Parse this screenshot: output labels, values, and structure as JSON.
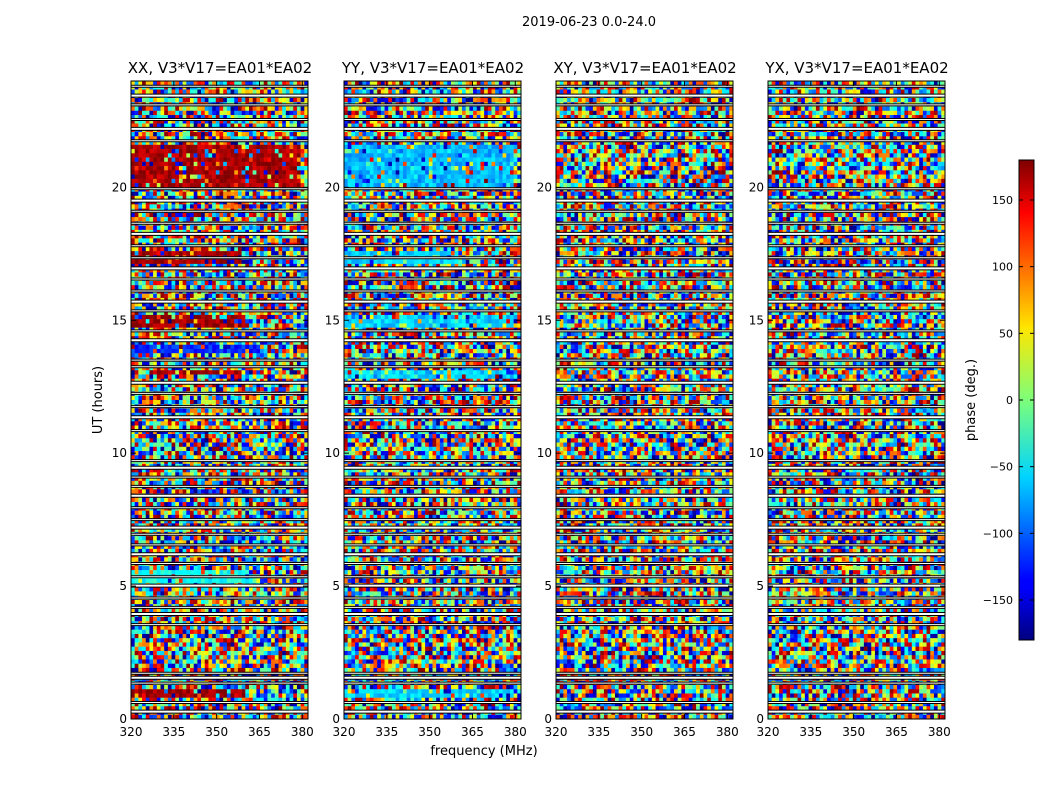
{
  "chart_data": {
    "type": "heatmap",
    "suptitle": "2019-06-23 0.0-24.0",
    "xlabel": "frequency (MHz)",
    "ylabel": "UT (hours)",
    "xlim": [
      320,
      382
    ],
    "ylim": [
      0,
      24
    ],
    "xticks": [
      320,
      335,
      350,
      365,
      380
    ],
    "yticks": [
      0,
      5,
      10,
      15,
      20
    ],
    "colorscale": "jet",
    "colorbar": {
      "label": "phase (deg.)",
      "range": [
        -180,
        180
      ],
      "ticks": [
        150,
        100,
        50,
        0,
        -50,
        -100,
        -150
      ]
    },
    "panels": [
      {
        "title": "XX, V3*V17=EA01*EA02"
      },
      {
        "title": "YY, V3*V17=EA01*EA02"
      },
      {
        "title": "XY, V3*V17=EA01*EA02"
      },
      {
        "title": "YX, V3*V17=EA01*EA02"
      }
    ],
    "features": [
      {
        "panels": [
          0
        ],
        "ut": [
          20.0,
          21.6
        ],
        "freq": [
          320,
          380
        ],
        "phase_deg": 165,
        "label": "coherent phase band"
      },
      {
        "panels": [
          0
        ],
        "ut": [
          17.2,
          17.6
        ],
        "freq": [
          320,
          360
        ],
        "phase_deg": 165
      },
      {
        "panels": [
          0
        ],
        "ut": [
          14.7,
          15.2
        ],
        "freq": [
          320,
          360
        ],
        "phase_deg": 170
      },
      {
        "panels": [
          0
        ],
        "ut": [
          13.7,
          14.1
        ],
        "freq": [
          320,
          365
        ],
        "phase_deg": -120
      },
      {
        "panels": [
          0
        ],
        "ut": [
          12.95,
          13.1
        ],
        "freq": [
          320,
          360
        ],
        "phase_deg": 165
      },
      {
        "panels": [
          0
        ],
        "ut": [
          5.0,
          5.6
        ],
        "freq": [
          320,
          362
        ],
        "phase_deg": -40
      },
      {
        "panels": [
          0
        ],
        "ut": [
          0.85,
          1.05
        ],
        "freq": [
          320,
          360
        ],
        "phase_deg": 170
      },
      {
        "panels": [
          1
        ],
        "ut": [
          20.0,
          21.6
        ],
        "freq": [
          320,
          380
        ],
        "phase_deg": -70
      },
      {
        "panels": [
          1
        ],
        "ut": [
          17.2,
          17.6
        ],
        "freq": [
          320,
          360
        ],
        "phase_deg": -60
      },
      {
        "panels": [
          1
        ],
        "ut": [
          14.7,
          15.2
        ],
        "freq": [
          320,
          380
        ],
        "phase_deg": -60
      },
      {
        "panels": [
          1
        ],
        "ut": [
          12.8,
          13.1
        ],
        "freq": [
          320,
          380
        ],
        "phase_deg": -60
      },
      {
        "panels": [
          1
        ],
        "ut": [
          0.85,
          1.05
        ],
        "freq": [
          320,
          380
        ],
        "phase_deg": -60
      }
    ],
    "flagged_ut_gaps": [
      0.28,
      0.62,
      1.35,
      1.55,
      1.72,
      3.55,
      3.95,
      4.2,
      4.55,
      5.02,
      5.35,
      5.85,
      6.2,
      6.55,
      6.95,
      7.2,
      7.5,
      7.95,
      8.4,
      8.75,
      9.1,
      9.45,
      9.72,
      10.85,
      11.35,
      11.75,
      12.25,
      12.65,
      13.25,
      13.5,
      14.25,
      14.6,
      15.35,
      15.7,
      16.1,
      16.55,
      16.95,
      17.35,
      17.8,
      18.25,
      18.65,
      19.1,
      19.5,
      19.95,
      21.75,
      22.2,
      22.55,
      23.1,
      23.45,
      23.8
    ]
  }
}
